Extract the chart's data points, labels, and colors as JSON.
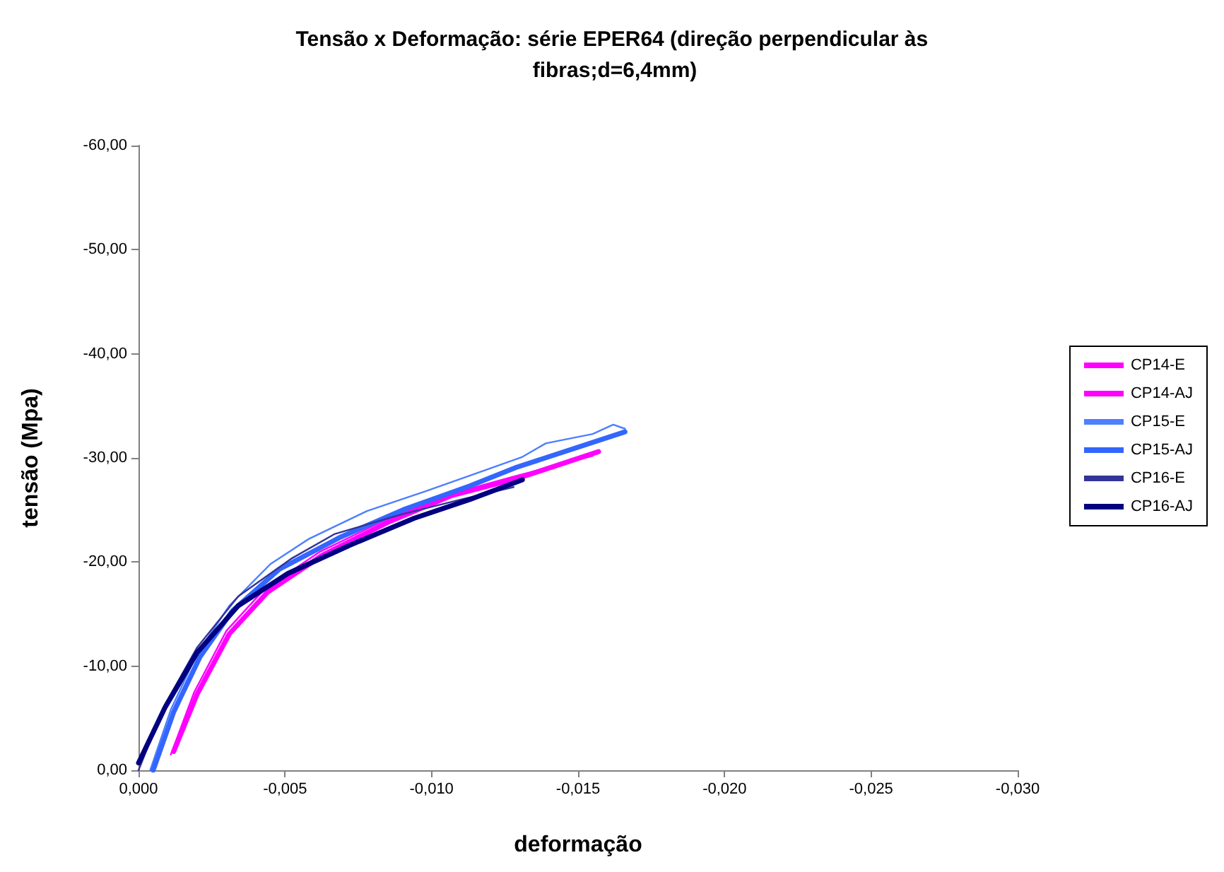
{
  "chart_data": {
    "type": "line",
    "title": "Tensão x Deformação: série EPER64 (direção perpendicular às fibras;d=6,4mm)",
    "xlabel": "deformação",
    "ylabel": "tensão (Mpa)",
    "xlim": [
      0,
      -0.03
    ],
    "ylim": [
      0,
      -60
    ],
    "xticks": [
      {
        "value": 0,
        "label": "0,000"
      },
      {
        "value": -0.005,
        "label": "-0,005"
      },
      {
        "value": -0.01,
        "label": "-0,010"
      },
      {
        "value": -0.015,
        "label": "-0,015"
      },
      {
        "value": -0.02,
        "label": "-0,020"
      },
      {
        "value": -0.025,
        "label": "-0,025"
      },
      {
        "value": -0.03,
        "label": "-0,030"
      }
    ],
    "yticks": [
      {
        "value": 0,
        "label": "0,00"
      },
      {
        "value": -10,
        "label": "-10,00"
      },
      {
        "value": -20,
        "label": "-20,00"
      },
      {
        "value": -30,
        "label": "-30,00"
      },
      {
        "value": -40,
        "label": "-40,00"
      },
      {
        "value": -50,
        "label": "-50,00"
      },
      {
        "value": -60,
        "label": "-60,00"
      }
    ],
    "grid": false,
    "legend": "right",
    "marker": "none",
    "line_style": "solid",
    "series": [
      {
        "name": "CP14-E",
        "color": "#ff00ff",
        "x": [
          -0.0011,
          -0.0019,
          -0.003,
          -0.0043,
          -0.0062,
          -0.0084,
          -0.0106,
          -0.0128,
          -0.0155
        ],
        "values": [
          -1.5,
          -7.5,
          -13.4,
          -17.4,
          -21.0,
          -24.0,
          -26.5,
          -28.2,
          -30.2
        ]
      },
      {
        "name": "CP14-AJ",
        "color": "#ff00ff",
        "x": [
          -0.0012,
          -0.002,
          -0.0031,
          -0.0044,
          -0.0063,
          -0.0085,
          -0.0107,
          -0.0129,
          -0.0157
        ],
        "values": [
          -1.8,
          -7.3,
          -13.1,
          -17.1,
          -20.7,
          -23.8,
          -26.4,
          -28.0,
          -30.6
        ]
      },
      {
        "name": "CP15-E",
        "color": "#4d7fff",
        "x": [
          -0.0004,
          -0.0011,
          -0.002,
          -0.0031,
          -0.0045,
          -0.0058,
          -0.0078,
          -0.0098,
          -0.0112,
          -0.0131,
          -0.0139,
          -0.0155,
          -0.0162,
          -0.0166
        ],
        "values": [
          0,
          -5.8,
          -11.2,
          -15.8,
          -19.8,
          -22.2,
          -24.9,
          -26.8,
          -28.2,
          -30.1,
          -31.4,
          -32.3,
          -33.2,
          -32.8
        ]
      },
      {
        "name": "CP15-AJ",
        "color": "#3366ff",
        "x": [
          -0.0005,
          -0.0012,
          -0.0021,
          -0.0032,
          -0.0048,
          -0.0069,
          -0.0091,
          -0.0113,
          -0.0129,
          -0.0166
        ],
        "values": [
          0,
          -5.6,
          -10.9,
          -15.3,
          -19.3,
          -22.4,
          -25.1,
          -27.3,
          -29.1,
          -32.5
        ]
      },
      {
        "name": "CP16-E",
        "color": "#333399",
        "x": [
          0,
          -0.0009,
          -0.002,
          -0.0034,
          -0.0052,
          -0.0067,
          -0.009,
          -0.011,
          -0.0128
        ],
        "values": [
          0,
          -6.3,
          -11.8,
          -16.7,
          -20.3,
          -22.7,
          -24.6,
          -26.0,
          -27.2
        ]
      },
      {
        "name": "CP16-AJ",
        "color": "#000080",
        "x": [
          0,
          -0.0009,
          -0.002,
          -0.0034,
          -0.0051,
          -0.0072,
          -0.0094,
          -0.0113,
          -0.0131
        ],
        "values": [
          -0.7,
          -6.0,
          -11.3,
          -15.8,
          -18.9,
          -21.6,
          -24.2,
          -26.0,
          -27.9
        ]
      }
    ]
  }
}
